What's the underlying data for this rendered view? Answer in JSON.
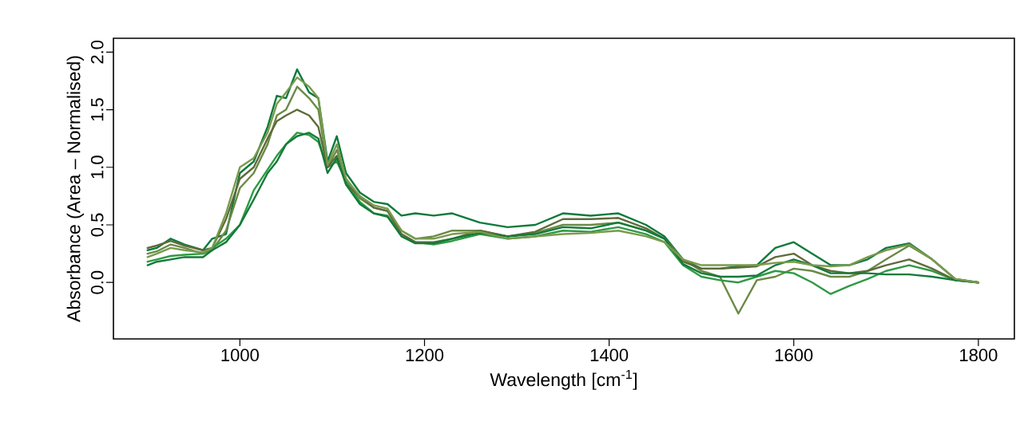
{
  "chart_data": {
    "type": "line",
    "xlabel": "Wavelength [cm$^{-1}$]",
    "ylabel": "Absorbance (Area – Normalised)",
    "xlim": [
      863,
      1839
    ],
    "ylim": [
      -0.49,
      2.12
    ],
    "xticks": [
      1000,
      1200,
      1400,
      1600,
      1800
    ],
    "yticks": [
      {
        "value": 0,
        "label": "0.0"
      },
      {
        "value": 0.5,
        "label": "0.5"
      },
      {
        "value": 1,
        "label": "1.0"
      },
      {
        "value": 1.5,
        "label": "1.5"
      },
      {
        "value": 2,
        "label": "2.0"
      }
    ],
    "line_style": "solid",
    "x": [
      900,
      910,
      925,
      940,
      960,
      970,
      985,
      1000,
      1015,
      1030,
      1040,
      1050,
      1062,
      1075,
      1085,
      1095,
      1105,
      1115,
      1130,
      1145,
      1160,
      1175,
      1190,
      1210,
      1230,
      1260,
      1290,
      1320,
      1350,
      1380,
      1410,
      1440,
      1460,
      1480,
      1500,
      1520,
      1540,
      1560,
      1580,
      1600,
      1620,
      1640,
      1660,
      1680,
      1700,
      1725,
      1750,
      1775,
      1800
    ],
    "series": [
      {
        "color": "#0b7a3b",
        "values": [
          0.28,
          0.3,
          0.38,
          0.33,
          0.28,
          0.38,
          0.42,
          0.95,
          1.05,
          1.35,
          1.62,
          1.6,
          1.85,
          1.65,
          1.6,
          1.05,
          1.27,
          0.95,
          0.78,
          0.7,
          0.68,
          0.58,
          0.6,
          0.58,
          0.6,
          0.52,
          0.48,
          0.5,
          0.6,
          0.58,
          0.6,
          0.5,
          0.4,
          0.2,
          0.12,
          0.12,
          0.14,
          0.15,
          0.3,
          0.35,
          0.25,
          0.15,
          0.15,
          0.2,
          0.3,
          0.34,
          0.2,
          0.03,
          0
        ]
      },
      {
        "color": "#6b8a45",
        "values": [
          0.25,
          0.27,
          0.33,
          0.3,
          0.25,
          0.28,
          0.45,
          0.82,
          0.95,
          1.2,
          1.45,
          1.5,
          1.7,
          1.6,
          1.5,
          1.0,
          1.15,
          0.9,
          0.73,
          0.65,
          0.62,
          0.45,
          0.38,
          0.4,
          0.45,
          0.45,
          0.4,
          0.43,
          0.5,
          0.5,
          0.52,
          0.45,
          0.38,
          0.2,
          0.1,
          0.05,
          -0.27,
          0.02,
          0.05,
          0.12,
          0.1,
          0.05,
          0.05,
          0.1,
          0.2,
          0.32,
          0.2,
          0.03,
          0
        ]
      },
      {
        "color": "#2e9a44",
        "values": [
          0.18,
          0.2,
          0.23,
          0.24,
          0.25,
          0.3,
          0.38,
          0.5,
          0.8,
          0.98,
          1.1,
          1.2,
          1.3,
          1.28,
          1.22,
          1.0,
          1.05,
          0.88,
          0.7,
          0.6,
          0.58,
          0.42,
          0.35,
          0.33,
          0.36,
          0.42,
          0.38,
          0.4,
          0.45,
          0.44,
          0.48,
          0.42,
          0.35,
          0.15,
          0.05,
          0.02,
          0.0,
          0.05,
          0.1,
          0.08,
          0.0,
          -0.1,
          -0.03,
          0.03,
          0.1,
          0.15,
          0.1,
          0.02,
          0
        ]
      },
      {
        "color": "#5e6b3a",
        "values": [
          0.3,
          0.32,
          0.36,
          0.32,
          0.28,
          0.3,
          0.55,
          0.9,
          1.0,
          1.25,
          1.4,
          1.45,
          1.5,
          1.45,
          1.35,
          1.0,
          1.1,
          0.85,
          0.75,
          0.65,
          0.62,
          0.42,
          0.35,
          0.35,
          0.38,
          0.45,
          0.4,
          0.44,
          0.55,
          0.55,
          0.56,
          0.47,
          0.38,
          0.18,
          0.12,
          0.12,
          0.13,
          0.14,
          0.22,
          0.25,
          0.15,
          0.1,
          0.08,
          0.1,
          0.15,
          0.2,
          0.12,
          0.02,
          0
        ]
      },
      {
        "color": "#137a3a",
        "values": [
          0.15,
          0.18,
          0.2,
          0.22,
          0.22,
          0.28,
          0.35,
          0.5,
          0.72,
          0.95,
          1.05,
          1.2,
          1.27,
          1.3,
          1.25,
          0.95,
          1.08,
          0.85,
          0.68,
          0.6,
          0.57,
          0.4,
          0.34,
          0.34,
          0.38,
          0.43,
          0.4,
          0.42,
          0.48,
          0.47,
          0.52,
          0.45,
          0.38,
          0.16,
          0.08,
          0.05,
          0.05,
          0.06,
          0.15,
          0.2,
          0.15,
          0.08,
          0.08,
          0.08,
          0.07,
          0.07,
          0.05,
          0.02,
          0
        ]
      },
      {
        "color": "#7a9a4e",
        "values": [
          0.22,
          0.25,
          0.3,
          0.28,
          0.26,
          0.3,
          0.6,
          1.0,
          1.08,
          1.3,
          1.55,
          1.65,
          1.78,
          1.7,
          1.6,
          1.02,
          1.2,
          0.9,
          0.75,
          0.67,
          0.64,
          0.45,
          0.38,
          0.38,
          0.42,
          0.44,
          0.38,
          0.4,
          0.42,
          0.43,
          0.45,
          0.4,
          0.35,
          0.2,
          0.15,
          0.15,
          0.15,
          0.15,
          0.17,
          0.18,
          0.15,
          0.14,
          0.15,
          0.22,
          0.28,
          0.33,
          0.2,
          0.03,
          0
        ]
      }
    ]
  }
}
